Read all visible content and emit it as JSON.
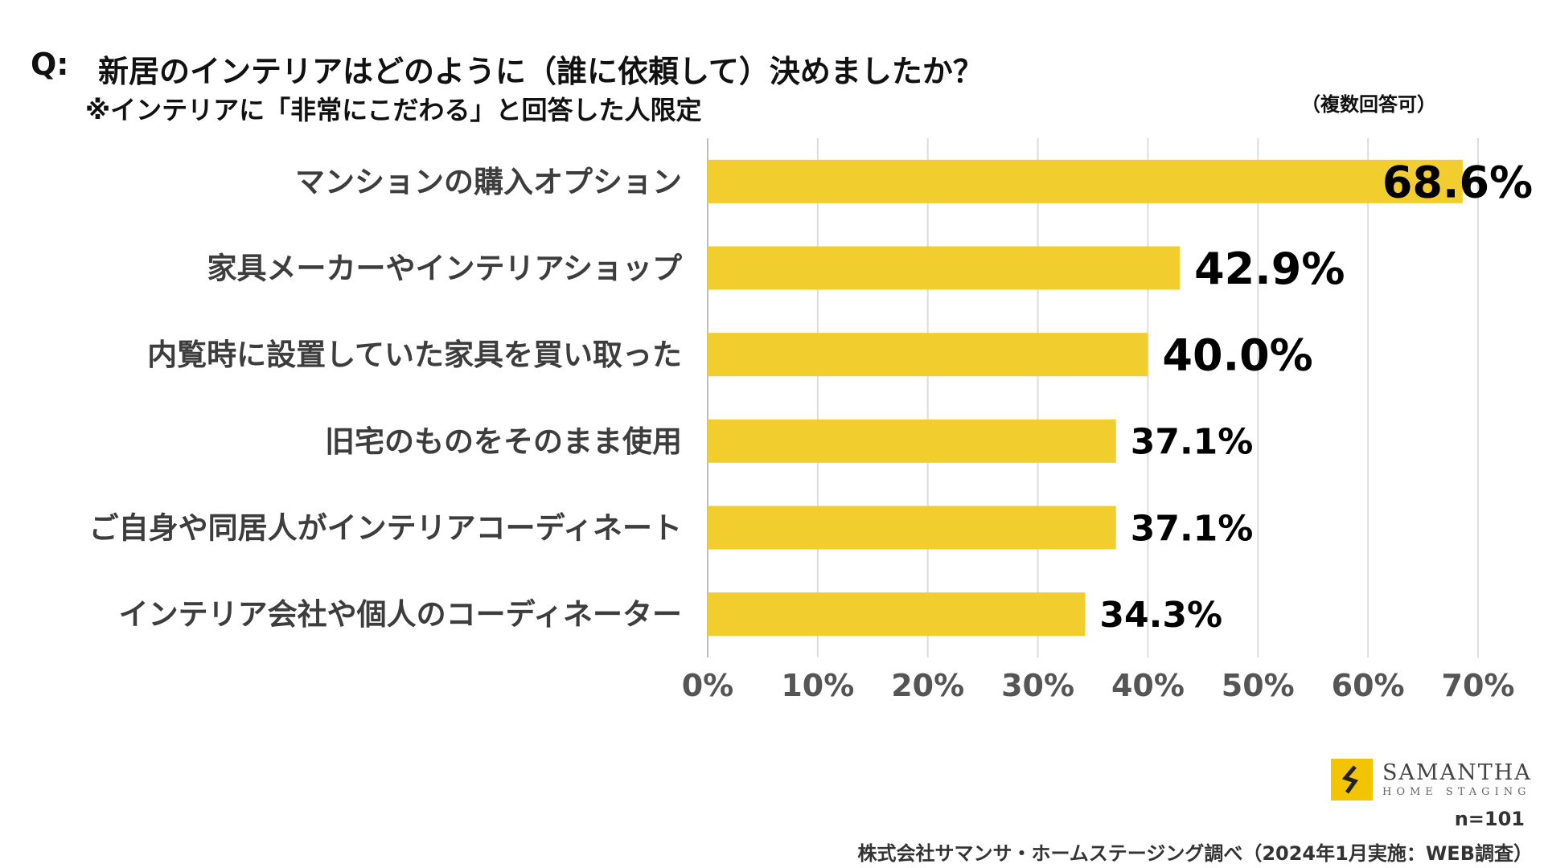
{
  "question": {
    "prefix": "Q:",
    "text": "新居のインテリアはどのように（誰に依頼して）決めましたか？",
    "note": "※インテリアに「非常にこだわる」と回答した人限定",
    "multiple_answers": "（複数回答可）"
  },
  "chart_data": {
    "type": "bar",
    "orientation": "horizontal",
    "categories": [
      "マンションの購入オプション",
      "家具メーカーやインテリアショップ",
      "内覧時に設置していた家具を買い取った",
      "旧宅のものをそのまま使用",
      "ご自身や同居人がインテリアコーディネート",
      "インテリア会社や個人のコーディネーター"
    ],
    "values": [
      68.6,
      42.9,
      40.0,
      37.1,
      37.1,
      34.3
    ],
    "value_labels": [
      "68.6%",
      "42.9%",
      "40.0%",
      "37.1%",
      "37.1%",
      "34.3%"
    ],
    "xlim": [
      0,
      70
    ],
    "ticks": [
      "0%",
      "10%",
      "20%",
      "30%",
      "40%",
      "50%",
      "60%",
      "70%"
    ],
    "grid": true,
    "bar_color": "#f2cd2e",
    "grid_color": "#dcdcdc"
  },
  "footer": {
    "logo_main": "SAMANTHA",
    "logo_sub": "HOME STAGING",
    "logo_icon": "samantha-logo-icon",
    "n": "n=101",
    "source": "株式会社サマンサ・ホームステージング調べ（2024年1月実施：WEB調査）"
  }
}
